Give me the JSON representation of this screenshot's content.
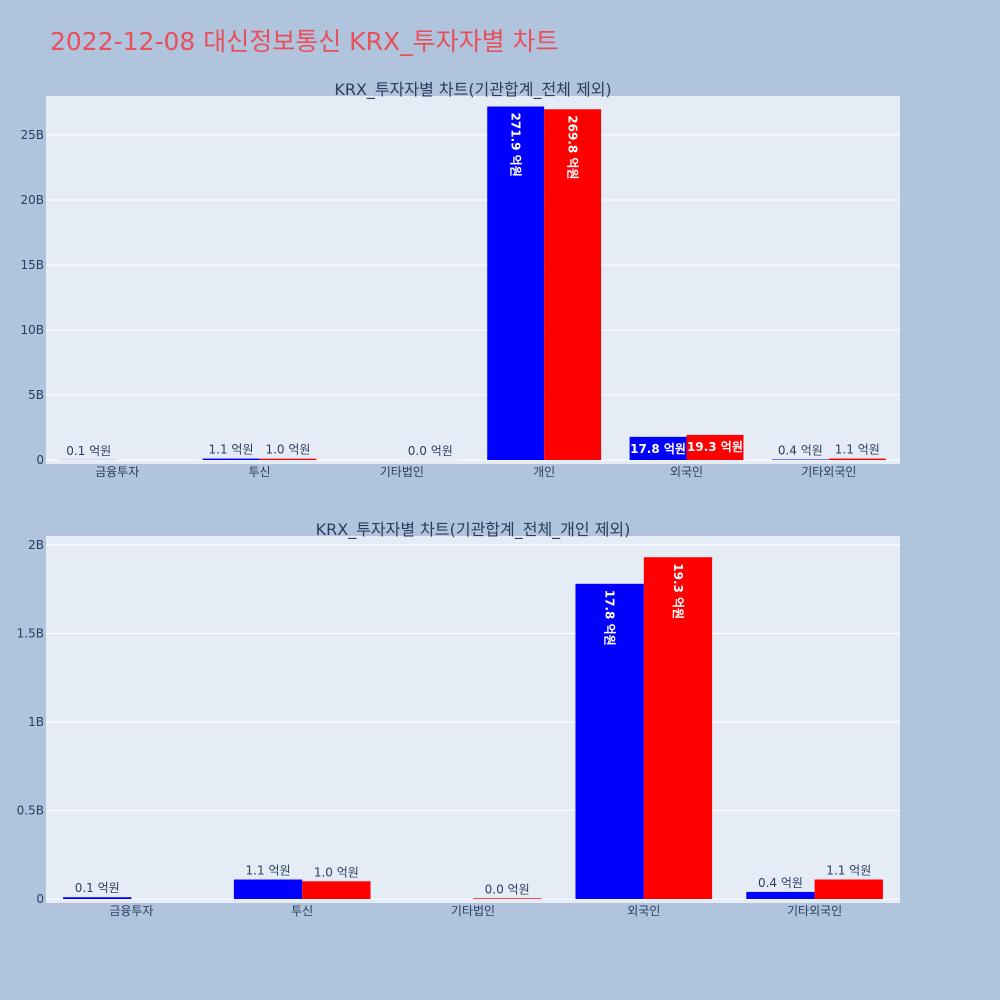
{
  "page": {
    "title": "2022-12-08 대신정보통신 KRX_투자자별 차트"
  },
  "colors": {
    "series_a": "#0000ff",
    "series_b": "#ff0000",
    "plot_bg": "#e5ecf6",
    "page_bg": "#b0c4de",
    "title": "#e8505b",
    "text": "#2a3f5f"
  },
  "chart_data": [
    {
      "type": "bar",
      "title": "KRX_투자자별 차트(기관합계_전체 제외)",
      "categories": [
        "금융투자",
        "투신",
        "기타법인",
        "개인",
        "외국인",
        "기타외국인"
      ],
      "series": [
        {
          "values": [
            10000000,
            110000000,
            0,
            27190000000,
            1780000000,
            40000000
          ],
          "labels": [
            "0.1 억원",
            "1.1 억원",
            "",
            "271.9 억원",
            "17.8 억원",
            "0.4 억원"
          ]
        },
        {
          "values": [
            0,
            100000000,
            4000000,
            26980000000,
            1930000000,
            110000000
          ],
          "labels": [
            "",
            "1.0 억원",
            "0.0 억원",
            "269.8 억원",
            "19.3 억원",
            "1.1 억원"
          ]
        }
      ],
      "ylim": [
        0,
        28000000000
      ],
      "yticks": [
        0,
        5000000000,
        10000000000,
        15000000000,
        20000000000,
        25000000000
      ],
      "ytick_labels": [
        "0",
        "5B",
        "10B",
        "15B",
        "20B",
        "25B"
      ],
      "grid": true
    },
    {
      "type": "bar",
      "title": "KRX_투자자별 차트(기관합계_전체_개인 제외)",
      "categories": [
        "금융투자",
        "투신",
        "기타법인",
        "외국인",
        "기타외국인"
      ],
      "series": [
        {
          "values": [
            10000000,
            110000000,
            0,
            1780000000,
            40000000
          ],
          "labels": [
            "0.1 억원",
            "1.1 억원",
            "",
            "17.8 억원",
            "0.4 억원"
          ]
        },
        {
          "values": [
            0,
            100000000,
            4000000,
            1930000000,
            110000000
          ],
          "labels": [
            "",
            "1.0 억원",
            "0.0 억원",
            "19.3 억원",
            "1.1 억원"
          ]
        }
      ],
      "ylim": [
        0,
        2050000000
      ],
      "yticks": [
        0,
        500000000,
        1000000000,
        1500000000,
        2000000000
      ],
      "ytick_labels": [
        "0",
        "0.5B",
        "1B",
        "1.5B",
        "2B"
      ],
      "grid": true
    }
  ]
}
